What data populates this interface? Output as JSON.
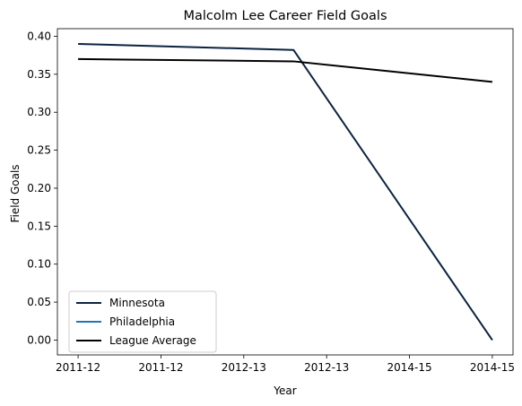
{
  "chart_data": {
    "type": "line",
    "title": "Malcolm Lee  Career Field Goals",
    "xlabel": "Year",
    "ylabel": "Field Goals",
    "x_ticks": [
      "2011-12",
      "2011-12",
      "2012-13",
      "2012-13",
      "2014-15",
      "2014-15"
    ],
    "x_tick_values": [
      0,
      1,
      2,
      3,
      4,
      5
    ],
    "xlim": [
      -0.25,
      5.25
    ],
    "ylim": [
      -0.0195,
      0.41
    ],
    "y_ticks": [
      0.0,
      0.05,
      0.1,
      0.15,
      0.2,
      0.25,
      0.3,
      0.35,
      0.4
    ],
    "y_tick_labels": [
      "0.00",
      "0.05",
      "0.10",
      "0.15",
      "0.20",
      "0.25",
      "0.30",
      "0.35",
      "0.40"
    ],
    "grid": false,
    "legend_position": "lower-left",
    "series": [
      {
        "name": "Minnesota",
        "color": "#0c2340",
        "points": [
          [
            0,
            0.39
          ],
          [
            2.6,
            0.382
          ],
          [
            5,
            0.0
          ]
        ]
      },
      {
        "name": "Philadelphia",
        "color": "#1f77b4",
        "points": []
      },
      {
        "name": "League Average",
        "color": "#000000",
        "points": [
          [
            0,
            0.37
          ],
          [
            2.6,
            0.367
          ],
          [
            5,
            0.34
          ]
        ]
      }
    ]
  }
}
